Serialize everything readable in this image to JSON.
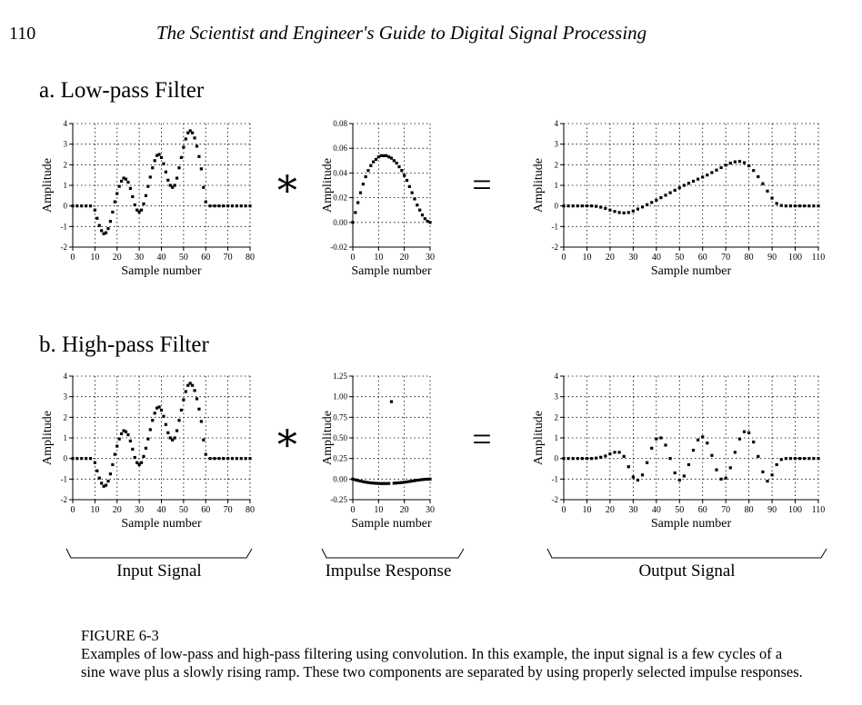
{
  "header": {
    "page_number": "110",
    "running_title": "The Scientist and Engineer's Guide to Digital Signal Processing"
  },
  "sections": [
    {
      "label": "a. Low-pass Filter"
    },
    {
      "label": "b. High-pass Filter"
    }
  ],
  "operators": {
    "convolve": "∗",
    "equals": "="
  },
  "group_labels": {
    "input": "Input Signal",
    "impulse": "Impulse Response",
    "output": "Output Signal"
  },
  "caption": {
    "figure_label": "FIGURE 6-3",
    "text": "Examples of low-pass and high-pass filtering using convolution.  In this example, the input signal is a few cycles of a sine wave plus a slowly rising ramp. These two components are separated by using properly selected impulse responses."
  },
  "chart_data": [
    {
      "type": "scatter",
      "panel": "a",
      "title": "",
      "xlabel": "Sample number",
      "ylabel": "Amplitude",
      "xlim": [
        0,
        80
      ],
      "ylim": [
        -2,
        4
      ],
      "xticks": [
        0,
        10,
        20,
        30,
        40,
        50,
        60,
        70,
        80
      ],
      "yticks": [
        -2,
        -1,
        0,
        1,
        2,
        3,
        4
      ],
      "yticklabels": [
        "-2",
        "-1",
        "0",
        "1",
        "2",
        "3",
        "4"
      ],
      "grid": true,
      "points": [
        [
          0,
          0
        ],
        [
          2,
          0
        ],
        [
          4,
          0
        ],
        [
          6,
          0
        ],
        [
          8,
          0
        ],
        [
          10,
          -0.2
        ],
        [
          11,
          -0.6
        ],
        [
          12,
          -0.95
        ],
        [
          13,
          -1.2
        ],
        [
          14,
          -1.35
        ],
        [
          15,
          -1.3
        ],
        [
          16,
          -1.1
        ],
        [
          17,
          -0.75
        ],
        [
          18,
          -0.3
        ],
        [
          19,
          0.2
        ],
        [
          20,
          0.6
        ],
        [
          21,
          0.95
        ],
        [
          22,
          1.2
        ],
        [
          23,
          1.35
        ],
        [
          24,
          1.3
        ],
        [
          25,
          1.15
        ],
        [
          26,
          0.85
        ],
        [
          27,
          0.45
        ],
        [
          28,
          0.05
        ],
        [
          29,
          -0.2
        ],
        [
          30,
          -0.3
        ],
        [
          31,
          -0.2
        ],
        [
          32,
          0.1
        ],
        [
          33,
          0.5
        ],
        [
          34,
          0.95
        ],
        [
          35,
          1.4
        ],
        [
          36,
          1.85
        ],
        [
          37,
          2.2
        ],
        [
          38,
          2.45
        ],
        [
          39,
          2.5
        ],
        [
          40,
          2.35
        ],
        [
          41,
          2.05
        ],
        [
          42,
          1.65
        ],
        [
          43,
          1.25
        ],
        [
          44,
          1.0
        ],
        [
          45,
          0.9
        ],
        [
          46,
          1.0
        ],
        [
          47,
          1.35
        ],
        [
          48,
          1.85
        ],
        [
          49,
          2.35
        ],
        [
          50,
          2.85
        ],
        [
          51,
          3.25
        ],
        [
          52,
          3.55
        ],
        [
          53,
          3.65
        ],
        [
          54,
          3.55
        ],
        [
          55,
          3.3
        ],
        [
          56,
          2.9
        ],
        [
          57,
          2.4
        ],
        [
          58,
          1.8
        ],
        [
          59,
          0.9
        ],
        [
          60,
          0.2
        ],
        [
          62,
          0
        ],
        [
          64,
          0
        ],
        [
          66,
          0
        ],
        [
          68,
          0
        ],
        [
          70,
          0
        ],
        [
          72,
          0
        ],
        [
          74,
          0
        ],
        [
          76,
          0
        ],
        [
          78,
          0
        ],
        [
          80,
          0
        ]
      ]
    },
    {
      "type": "scatter",
      "panel": "a",
      "title": "",
      "xlabel": "Sample number",
      "ylabel": "Amplitude",
      "xlim": [
        0,
        30
      ],
      "ylim": [
        -0.02,
        0.08
      ],
      "xticks": [
        0,
        10,
        20,
        30
      ],
      "yticks": [
        -0.02,
        0,
        0.02,
        0.04,
        0.06,
        0.08
      ],
      "yticklabels": [
        "-0.02",
        "0.00",
        "0.02",
        "0.04",
        "0.06",
        "0.08"
      ],
      "grid": true,
      "points": [
        [
          0,
          0
        ],
        [
          1,
          0.008
        ],
        [
          2,
          0.016
        ],
        [
          3,
          0.024
        ],
        [
          4,
          0.031
        ],
        [
          5,
          0.037
        ],
        [
          6,
          0.042
        ],
        [
          7,
          0.046
        ],
        [
          8,
          0.049
        ],
        [
          9,
          0.051
        ],
        [
          10,
          0.053
        ],
        [
          11,
          0.054
        ],
        [
          12,
          0.054
        ],
        [
          13,
          0.054
        ],
        [
          14,
          0.053
        ],
        [
          15,
          0.052
        ],
        [
          16,
          0.05
        ],
        [
          17,
          0.048
        ],
        [
          18,
          0.045
        ],
        [
          19,
          0.042
        ],
        [
          20,
          0.038
        ],
        [
          21,
          0.034
        ],
        [
          22,
          0.029
        ],
        [
          23,
          0.024
        ],
        [
          24,
          0.019
        ],
        [
          25,
          0.014
        ],
        [
          26,
          0.01
        ],
        [
          27,
          0.006
        ],
        [
          28,
          0.003
        ],
        [
          29,
          0.001
        ],
        [
          30,
          0
        ]
      ]
    },
    {
      "type": "scatter",
      "panel": "a",
      "title": "",
      "xlabel": "Sample number",
      "ylabel": "Amplitude",
      "xlim": [
        0,
        110
      ],
      "ylim": [
        -2,
        4
      ],
      "xticks": [
        0,
        10,
        20,
        30,
        40,
        50,
        60,
        70,
        80,
        90,
        100,
        110
      ],
      "yticks": [
        -2,
        -1,
        0,
        1,
        2,
        3,
        4
      ],
      "yticklabels": [
        "-2",
        "-1",
        "0",
        "1",
        "2",
        "3",
        "4"
      ],
      "grid": true,
      "points": [
        [
          0,
          0
        ],
        [
          2,
          0
        ],
        [
          4,
          0
        ],
        [
          6,
          0
        ],
        [
          8,
          0
        ],
        [
          10,
          0
        ],
        [
          12,
          0
        ],
        [
          14,
          -0.02
        ],
        [
          16,
          -0.06
        ],
        [
          18,
          -0.12
        ],
        [
          20,
          -0.2
        ],
        [
          22,
          -0.27
        ],
        [
          24,
          -0.32
        ],
        [
          26,
          -0.34
        ],
        [
          28,
          -0.32
        ],
        [
          30,
          -0.25
        ],
        [
          32,
          -0.15
        ],
        [
          34,
          -0.05
        ],
        [
          36,
          0.06
        ],
        [
          38,
          0.17
        ],
        [
          40,
          0.28
        ],
        [
          42,
          0.4
        ],
        [
          44,
          0.52
        ],
        [
          46,
          0.64
        ],
        [
          48,
          0.76
        ],
        [
          50,
          0.88
        ],
        [
          52,
          1.0
        ],
        [
          54,
          1.1
        ],
        [
          56,
          1.2
        ],
        [
          58,
          1.3
        ],
        [
          60,
          1.4
        ],
        [
          62,
          1.5
        ],
        [
          64,
          1.62
        ],
        [
          66,
          1.74
        ],
        [
          68,
          1.86
        ],
        [
          70,
          1.98
        ],
        [
          72,
          2.08
        ],
        [
          74,
          2.14
        ],
        [
          76,
          2.16
        ],
        [
          78,
          2.1
        ],
        [
          80,
          1.95
        ],
        [
          82,
          1.72
        ],
        [
          84,
          1.42
        ],
        [
          86,
          1.08
        ],
        [
          88,
          0.72
        ],
        [
          90,
          0.38
        ],
        [
          92,
          0.12
        ],
        [
          94,
          0.02
        ],
        [
          96,
          0
        ],
        [
          98,
          0
        ],
        [
          100,
          0
        ],
        [
          102,
          0
        ],
        [
          104,
          0
        ],
        [
          106,
          0
        ],
        [
          108,
          0
        ],
        [
          110,
          0
        ]
      ]
    },
    {
      "type": "scatter",
      "panel": "b",
      "title": "",
      "xlabel": "Sample number",
      "ylabel": "Amplitude",
      "xlim": [
        0,
        80
      ],
      "ylim": [
        -2,
        4
      ],
      "xticks": [
        0,
        10,
        20,
        30,
        40,
        50,
        60,
        70,
        80
      ],
      "yticks": [
        -2,
        -1,
        0,
        1,
        2,
        3,
        4
      ],
      "yticklabels": [
        "-2",
        "-1",
        "0",
        "1",
        "2",
        "3",
        "4"
      ],
      "grid": true,
      "points": [
        [
          0,
          0
        ],
        [
          2,
          0
        ],
        [
          4,
          0
        ],
        [
          6,
          0
        ],
        [
          8,
          0
        ],
        [
          10,
          -0.2
        ],
        [
          11,
          -0.6
        ],
        [
          12,
          -0.95
        ],
        [
          13,
          -1.2
        ],
        [
          14,
          -1.35
        ],
        [
          15,
          -1.3
        ],
        [
          16,
          -1.1
        ],
        [
          17,
          -0.75
        ],
        [
          18,
          -0.3
        ],
        [
          19,
          0.2
        ],
        [
          20,
          0.6
        ],
        [
          21,
          0.95
        ],
        [
          22,
          1.2
        ],
        [
          23,
          1.35
        ],
        [
          24,
          1.3
        ],
        [
          25,
          1.15
        ],
        [
          26,
          0.85
        ],
        [
          27,
          0.45
        ],
        [
          28,
          0.05
        ],
        [
          29,
          -0.2
        ],
        [
          30,
          -0.3
        ],
        [
          31,
          -0.2
        ],
        [
          32,
          0.1
        ],
        [
          33,
          0.5
        ],
        [
          34,
          0.95
        ],
        [
          35,
          1.4
        ],
        [
          36,
          1.85
        ],
        [
          37,
          2.2
        ],
        [
          38,
          2.45
        ],
        [
          39,
          2.5
        ],
        [
          40,
          2.35
        ],
        [
          41,
          2.05
        ],
        [
          42,
          1.65
        ],
        [
          43,
          1.25
        ],
        [
          44,
          1.0
        ],
        [
          45,
          0.9
        ],
        [
          46,
          1.0
        ],
        [
          47,
          1.35
        ],
        [
          48,
          1.85
        ],
        [
          49,
          2.35
        ],
        [
          50,
          2.85
        ],
        [
          51,
          3.25
        ],
        [
          52,
          3.55
        ],
        [
          53,
          3.65
        ],
        [
          54,
          3.55
        ],
        [
          55,
          3.3
        ],
        [
          56,
          2.9
        ],
        [
          57,
          2.4
        ],
        [
          58,
          1.8
        ],
        [
          59,
          0.9
        ],
        [
          60,
          0.2
        ],
        [
          62,
          0
        ],
        [
          64,
          0
        ],
        [
          66,
          0
        ],
        [
          68,
          0
        ],
        [
          70,
          0
        ],
        [
          72,
          0
        ],
        [
          74,
          0
        ],
        [
          76,
          0
        ],
        [
          78,
          0
        ],
        [
          80,
          0
        ]
      ]
    },
    {
      "type": "scatter",
      "panel": "b",
      "title": "",
      "xlabel": "Sample number",
      "ylabel": "Amplitude",
      "xlim": [
        0,
        30
      ],
      "ylim": [
        -0.25,
        1.25
      ],
      "xticks": [
        0,
        10,
        20,
        30
      ],
      "yticks": [
        -0.25,
        0,
        0.25,
        0.5,
        0.75,
        1.0,
        1.25
      ],
      "yticklabels": [
        "-0.25",
        "0.00",
        "0.25",
        "0.50",
        "0.75",
        "1.00",
        "1.25"
      ],
      "grid": true,
      "points": [
        [
          0,
          0
        ],
        [
          1,
          -0.009
        ],
        [
          2,
          -0.017
        ],
        [
          3,
          -0.024
        ],
        [
          4,
          -0.031
        ],
        [
          5,
          -0.037
        ],
        [
          6,
          -0.042
        ],
        [
          7,
          -0.046
        ],
        [
          8,
          -0.049
        ],
        [
          9,
          -0.051
        ],
        [
          10,
          -0.053
        ],
        [
          11,
          -0.054
        ],
        [
          12,
          -0.054
        ],
        [
          13,
          -0.054
        ],
        [
          14,
          -0.053
        ],
        [
          15,
          0.94
        ],
        [
          16,
          -0.05
        ],
        [
          17,
          -0.048
        ],
        [
          18,
          -0.045
        ],
        [
          19,
          -0.042
        ],
        [
          20,
          -0.038
        ],
        [
          21,
          -0.034
        ],
        [
          22,
          -0.029
        ],
        [
          23,
          -0.024
        ],
        [
          24,
          -0.019
        ],
        [
          25,
          -0.014
        ],
        [
          26,
          -0.01
        ],
        [
          27,
          -0.006
        ],
        [
          28,
          -0.003
        ],
        [
          29,
          -0.001
        ],
        [
          30,
          0
        ]
      ]
    },
    {
      "type": "scatter",
      "panel": "b",
      "title": "",
      "xlabel": "Sample number",
      "ylabel": "Amplitude",
      "xlim": [
        0,
        110
      ],
      "ylim": [
        -2,
        4
      ],
      "xticks": [
        0,
        10,
        20,
        30,
        40,
        50,
        60,
        70,
        80,
        90,
        100,
        110
      ],
      "yticks": [
        -2,
        -1,
        0,
        1,
        2,
        3,
        4
      ],
      "yticklabels": [
        "-2",
        "-1",
        "0",
        "1",
        "2",
        "3",
        "4"
      ],
      "grid": true,
      "points": [
        [
          0,
          0
        ],
        [
          2,
          0
        ],
        [
          4,
          0
        ],
        [
          6,
          0
        ],
        [
          8,
          0
        ],
        [
          10,
          0
        ],
        [
          12,
          0
        ],
        [
          14,
          0.02
        ],
        [
          16,
          0.06
        ],
        [
          18,
          0.12
        ],
        [
          20,
          0.22
        ],
        [
          22,
          0.3
        ],
        [
          24,
          0.3
        ],
        [
          26,
          0.1
        ],
        [
          28,
          -0.4
        ],
        [
          30,
          -0.9
        ],
        [
          32,
          -1.05
        ],
        [
          34,
          -0.8
        ],
        [
          36,
          -0.2
        ],
        [
          38,
          0.5
        ],
        [
          40,
          0.95
        ],
        [
          42,
          1.0
        ],
        [
          44,
          0.65
        ],
        [
          46,
          0.0
        ],
        [
          48,
          -0.7
        ],
        [
          50,
          -1.05
        ],
        [
          52,
          -0.85
        ],
        [
          54,
          -0.3
        ],
        [
          56,
          0.4
        ],
        [
          58,
          0.9
        ],
        [
          60,
          1.05
        ],
        [
          62,
          0.75
        ],
        [
          64,
          0.15
        ],
        [
          66,
          -0.55
        ],
        [
          68,
          -1.0
        ],
        [
          70,
          -0.95
        ],
        [
          72,
          -0.45
        ],
        [
          74,
          0.3
        ],
        [
          76,
          0.95
        ],
        [
          78,
          1.3
        ],
        [
          80,
          1.25
        ],
        [
          82,
          0.8
        ],
        [
          84,
          0.1
        ],
        [
          86,
          -0.65
        ],
        [
          88,
          -1.1
        ],
        [
          90,
          -0.8
        ],
        [
          92,
          -0.3
        ],
        [
          94,
          -0.05
        ],
        [
          96,
          0
        ],
        [
          98,
          0
        ],
        [
          100,
          0
        ],
        [
          102,
          0
        ],
        [
          104,
          0
        ],
        [
          106,
          0
        ],
        [
          108,
          0
        ],
        [
          110,
          0
        ]
      ]
    }
  ]
}
